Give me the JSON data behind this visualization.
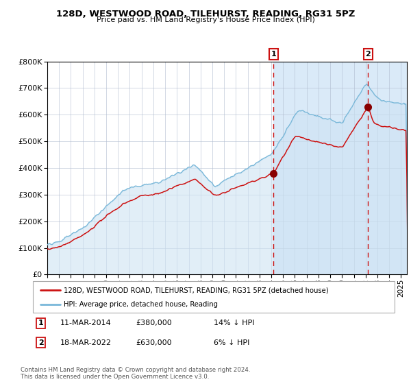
{
  "title": "128D, WESTWOOD ROAD, TILEHURST, READING, RG31 5PZ",
  "subtitle": "Price paid vs. HM Land Registry's House Price Index (HPI)",
  "legend_line1": "128D, WESTWOOD ROAD, TILEHURST, READING, RG31 5PZ (detached house)",
  "legend_line2": "HPI: Average price, detached house, Reading",
  "sale1_date": "11-MAR-2014",
  "sale1_price": 380000,
  "sale1_hpi": "14% ↓ HPI",
  "sale1_year": 2014.19,
  "sale2_date": "18-MAR-2022",
  "sale2_price": 630000,
  "sale2_hpi": "6% ↓ HPI",
  "sale2_year": 2022.21,
  "footer": "Contains HM Land Registry data © Crown copyright and database right 2024.\nThis data is licensed under the Open Government Licence v3.0.",
  "hpi_color": "#7ab8d9",
  "hpi_fill_color": "#cce0f0",
  "price_color": "#cc1111",
  "sale_dot_color": "#880000",
  "ylim": [
    0,
    800000
  ],
  "xmin": 1995,
  "xmax": 2025.5
}
